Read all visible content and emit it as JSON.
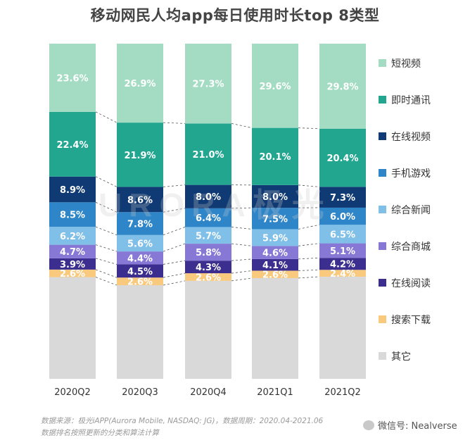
{
  "title": "移动网民人均app每日使用时长top 8类型",
  "chart_data": {
    "type": "bar",
    "stacked": true,
    "normalized": true,
    "title": "移动网民人均app每日使用时长top 8类型",
    "categories": [
      "2020Q2",
      "2020Q3",
      "2020Q4",
      "2021Q1",
      "2021Q2"
    ],
    "series": [
      {
        "name": "其它",
        "color": "#d9d9d9",
        "values": [
          35.2,
          31.9,
          33.5,
          35.4,
          35.8
        ],
        "labels": [
          "",
          "",
          "",
          "",
          ""
        ]
      },
      {
        "name": "搜索下载",
        "color": "#f9c97e",
        "values": [
          2.6,
          2.6,
          2.6,
          2.6,
          2.4
        ],
        "labels": [
          "2.6%",
          "2.6%",
          "2.6%",
          "2.6%",
          "2.4%"
        ]
      },
      {
        "name": "在线阅读",
        "color": "#3b2e8f",
        "values": [
          3.9,
          4.5,
          4.3,
          4.1,
          4.2
        ],
        "labels": [
          "3.9%",
          "4.5%",
          "4.3%",
          "4.1%",
          "4.2%"
        ]
      },
      {
        "name": "综合商城",
        "color": "#8878d6",
        "values": [
          4.7,
          4.4,
          5.8,
          4.6,
          5.1
        ],
        "labels": [
          "4.7%",
          "4.4%",
          "5.8%",
          "4.6%",
          "5.1%"
        ]
      },
      {
        "name": "综合新闻",
        "color": "#7fbfe8",
        "values": [
          6.2,
          5.6,
          5.7,
          5.9,
          6.5
        ],
        "labels": [
          "6.2%",
          "5.6%",
          "5.7%",
          "5.9%",
          "6.5%"
        ]
      },
      {
        "name": "手机游戏",
        "color": "#2e86c9",
        "values": [
          8.5,
          7.8,
          6.4,
          7.5,
          6.0
        ],
        "labels": [
          "8.5%",
          "7.8%",
          "6.4%",
          "7.5%",
          "6.0%"
        ]
      },
      {
        "name": "在线视频",
        "color": "#0f3a73",
        "values": [
          8.9,
          8.6,
          8.0,
          8.0,
          7.3
        ],
        "labels": [
          "8.9%",
          "8.6%",
          "8.0%",
          "8.0%",
          "7.3%"
        ]
      },
      {
        "name": "即时通讯",
        "color": "#23a68f",
        "values": [
          22.4,
          21.9,
          21.0,
          20.1,
          20.4
        ],
        "labels": [
          "22.4%",
          "21.9%",
          "21.0%",
          "20.1%",
          "20.4%"
        ]
      },
      {
        "name": "短视频",
        "color": "#a3dcc3",
        "values": [
          23.6,
          26.9,
          27.3,
          29.6,
          29.8
        ],
        "labels": [
          "23.6%",
          "26.9%",
          "27.3%",
          "29.6%",
          "29.8%"
        ]
      }
    ],
    "legend_order": [
      "短视频",
      "即时通讯",
      "在线视频",
      "手机游戏",
      "综合新闻",
      "综合商城",
      "在线阅读",
      "搜索下载",
      "其它"
    ],
    "legend_position": "right",
    "ylim": [
      0,
      100
    ],
    "grid": false
  },
  "watermark": "URORA极光",
  "footnote": {
    "line1": "数据来源：极光iAPP(Aurora Mobile, NASDAQ: JG)，数据周期：2020.04-2021.06",
    "line2": "数据排名按照更新的分类和算法计算"
  },
  "wechat": "微信号: Nealverse"
}
